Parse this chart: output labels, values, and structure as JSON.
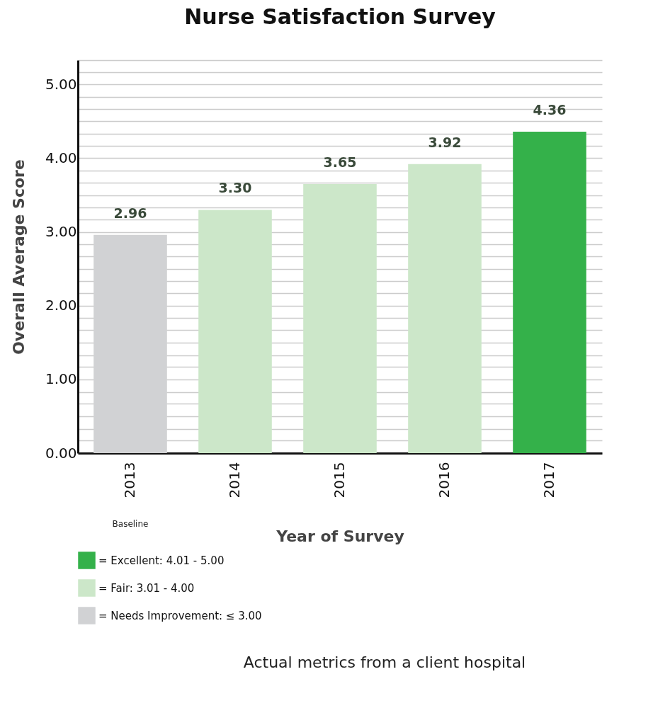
{
  "chart_data": {
    "type": "bar",
    "title": "Nurse Satisfaction Survey",
    "xlabel": "Year of Survey",
    "ylabel": "Overall Average Score",
    "categories": [
      "2013",
      "2014",
      "2015",
      "2016",
      "2017"
    ],
    "series": [
      {
        "name": "=  Excellent: 4.01 - 5.00",
        "color": "#34b14a",
        "values": [
          null,
          null,
          null,
          null,
          4.36
        ]
      },
      {
        "name": "=  Fair: 3.01 - 4.00",
        "color": "#cce7c9",
        "values": [
          null,
          3.3,
          3.65,
          3.92,
          null
        ]
      },
      {
        "name": "=  Needs Improvement: ≤ 3.00",
        "color": "#d1d2d4",
        "values": [
          2.96,
          null,
          null,
          null,
          null
        ]
      }
    ],
    "value_labels": [
      "2.96",
      "3.30",
      "3.65",
      "3.92",
      "4.36"
    ],
    "ylim": [
      0,
      5.33
    ],
    "yticks": [
      {
        "value": 0,
        "label": "0.00"
      },
      {
        "value": 0.17,
        "label": null
      },
      {
        "value": 0.33,
        "label": null
      },
      {
        "value": 0.5,
        "label": null
      },
      {
        "value": 0.67,
        "label": null
      },
      {
        "value": 0.83,
        "label": null
      },
      {
        "value": 1,
        "label": "1.00"
      },
      {
        "value": 1.17,
        "label": null
      },
      {
        "value": 1.33,
        "label": null
      },
      {
        "value": 1.5,
        "label": null
      },
      {
        "value": 1.67,
        "label": null
      },
      {
        "value": 1.83,
        "label": null
      },
      {
        "value": 2,
        "label": "2.00"
      },
      {
        "value": 2.17,
        "label": null
      },
      {
        "value": 2.33,
        "label": null
      },
      {
        "value": 2.5,
        "label": null
      },
      {
        "value": 2.67,
        "label": null
      },
      {
        "value": 2.83,
        "label": null
      },
      {
        "value": 3,
        "label": "3.00"
      },
      {
        "value": 3.17,
        "label": null
      },
      {
        "value": 3.33,
        "label": null
      },
      {
        "value": 3.5,
        "label": null
      },
      {
        "value": 3.67,
        "label": null
      },
      {
        "value": 3.83,
        "label": null
      },
      {
        "value": 4,
        "label": "4.00"
      },
      {
        "value": 4.17,
        "label": null
      },
      {
        "value": 4.33,
        "label": null
      },
      {
        "value": 4.5,
        "label": null
      },
      {
        "value": 4.67,
        "label": null
      },
      {
        "value": 4.83,
        "label": null
      },
      {
        "value": 5,
        "label": "5.00"
      },
      {
        "value": 5.17,
        "label": null
      },
      {
        "value": 5.33,
        "label": null
      }
    ],
    "grid": "y",
    "legend": "bottom left",
    "annotations": [
      "Baseline",
      "Actual metrics from a client hospital"
    ]
  }
}
